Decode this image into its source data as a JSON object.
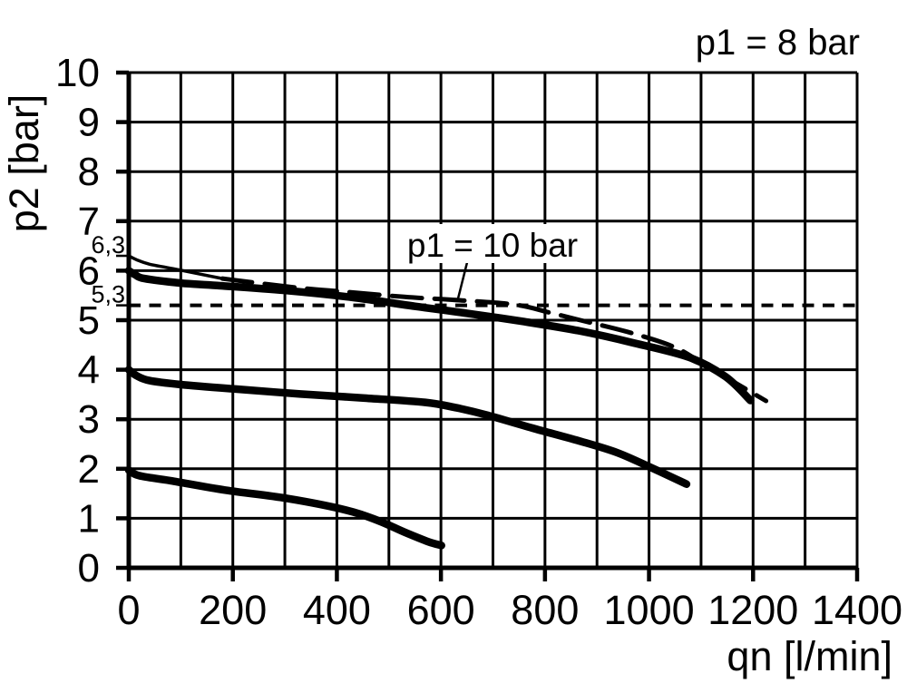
{
  "figure": {
    "background": "#ffffff",
    "ink_color": "#000000"
  },
  "chart_data": {
    "type": "line",
    "xlabel": "qn [l/min]",
    "ylabel": "p2 [bar]",
    "xlim": [
      0,
      1400
    ],
    "ylim": [
      0,
      10
    ],
    "grid": true,
    "x_grid_step": 100,
    "y_grid_step": 1,
    "x_tick_labels": [
      "0",
      "200",
      "400",
      "600",
      "800",
      "1000",
      "1200",
      "1400"
    ],
    "x_tick_values": [
      0,
      200,
      400,
      600,
      800,
      1000,
      1200,
      1400
    ],
    "y_tick_labels": [
      "0",
      "1",
      "2",
      "3",
      "4",
      "5",
      "6",
      "7",
      "8",
      "9",
      "10"
    ],
    "y_tick_values": [
      0,
      1,
      2,
      3,
      4,
      5,
      6,
      7,
      8,
      9,
      10
    ],
    "y_minor_marks": [
      {
        "value": 6.3,
        "label": "6,3"
      },
      {
        "value": 5.3,
        "label": "5,3"
      }
    ],
    "condition_label": "p1 = 8 bar",
    "annotation": {
      "text": "p1 = 10 bar",
      "leader_from_data": [
        654,
        6.32
      ],
      "leader_to_data": [
        633,
        5.44
      ]
    },
    "reference_line": {
      "y": 5.3,
      "style": "short-dash",
      "x_start": 0,
      "x_end": 1400
    },
    "series": [
      {
        "id": "curve-p1-10-bar",
        "label": "p1 = 10 bar",
        "style": "long-dash",
        "solid_start_until_x": 200,
        "points": [
          [
            0,
            6.3
          ],
          [
            15,
            6.22
          ],
          [
            40,
            6.13
          ],
          [
            85,
            6.04
          ],
          [
            180,
            5.84
          ],
          [
            320,
            5.66
          ],
          [
            420,
            5.57
          ],
          [
            530,
            5.47
          ],
          [
            640,
            5.4
          ],
          [
            745,
            5.31
          ],
          [
            810,
            5.15
          ],
          [
            868,
            5.0
          ],
          [
            967,
            4.74
          ],
          [
            1050,
            4.45
          ],
          [
            1110,
            4.08
          ],
          [
            1165,
            3.74
          ],
          [
            1225,
            3.37
          ]
        ]
      },
      {
        "id": "curve-upper-solid",
        "label": "",
        "style": "solid",
        "points": [
          [
            0,
            6.0
          ],
          [
            12,
            5.92
          ],
          [
            30,
            5.84
          ],
          [
            100,
            5.75
          ],
          [
            170,
            5.7
          ],
          [
            300,
            5.6
          ],
          [
            430,
            5.46
          ],
          [
            550,
            5.28
          ],
          [
            650,
            5.14
          ],
          [
            760,
            4.97
          ],
          [
            868,
            4.78
          ],
          [
            967,
            4.55
          ],
          [
            1077,
            4.25
          ],
          [
            1147,
            3.86
          ],
          [
            1195,
            3.38
          ]
        ]
      },
      {
        "id": "curve-middle-solid",
        "label": "",
        "style": "solid",
        "points": [
          [
            0,
            4.0
          ],
          [
            15,
            3.88
          ],
          [
            40,
            3.78
          ],
          [
            100,
            3.7
          ],
          [
            205,
            3.61
          ],
          [
            330,
            3.51
          ],
          [
            450,
            3.43
          ],
          [
            570,
            3.34
          ],
          [
            630,
            3.23
          ],
          [
            690,
            3.08
          ],
          [
            780,
            2.81
          ],
          [
            870,
            2.55
          ],
          [
            940,
            2.32
          ],
          [
            1005,
            2.02
          ],
          [
            1072,
            1.69
          ]
        ]
      },
      {
        "id": "curve-lower-solid",
        "label": "",
        "style": "solid",
        "points": [
          [
            0,
            1.97
          ],
          [
            20,
            1.86
          ],
          [
            80,
            1.76
          ],
          [
            185,
            1.57
          ],
          [
            305,
            1.4
          ],
          [
            420,
            1.16
          ],
          [
            480,
            0.95
          ],
          [
            530,
            0.72
          ],
          [
            575,
            0.53
          ],
          [
            601,
            0.45
          ]
        ]
      }
    ]
  }
}
